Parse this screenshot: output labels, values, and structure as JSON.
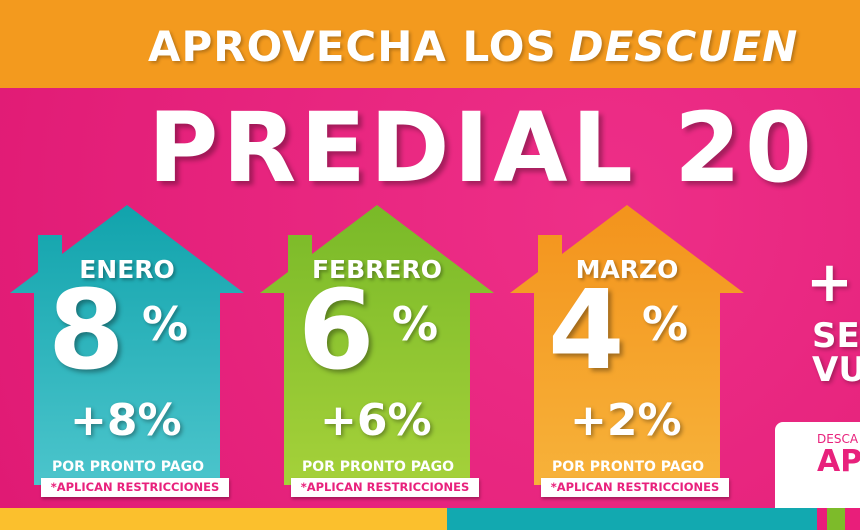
{
  "header": {
    "lead": "APROVECHA LOS",
    "emph": "DESCUEN"
  },
  "title": "PREDIAL 20",
  "houses": [
    {
      "month": "ENERO",
      "discount": "8",
      "pct": "%",
      "extra": "+8%",
      "pronto": "POR PRONTO PAGO",
      "restr": "*APLICAN RESTRICCIONES",
      "color": "#17a9b1"
    },
    {
      "month": "FEBRERO",
      "discount": "6",
      "pct": "%",
      "extra": "+6%",
      "pronto": "POR PRONTO PAGO",
      "restr": "*APLICAN RESTRICCIONES",
      "color": "#7dbb2a"
    },
    {
      "month": "MARZO",
      "discount": "4",
      "pct": "%",
      "extra": "+2%",
      "pronto": "POR PRONTO PAGO",
      "restr": "*APLICAN RESTRICCIONES",
      "color": "#f39a1e"
    }
  ],
  "right": {
    "plus": "+",
    "line1": "SE",
    "line2": "VU",
    "card_small": "DESCA",
    "card_big": "AP"
  }
}
